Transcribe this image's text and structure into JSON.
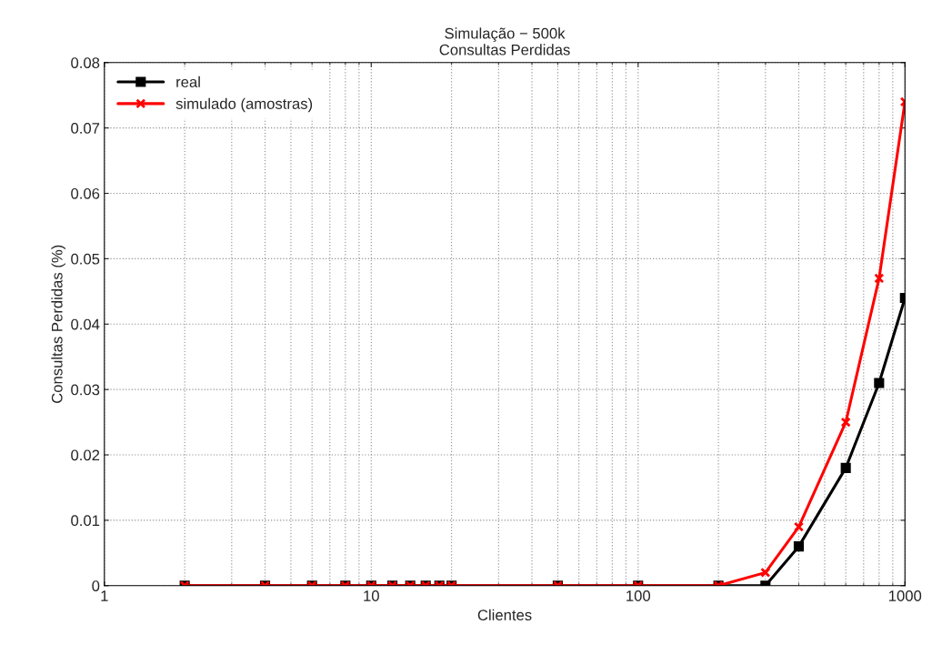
{
  "chart_data": {
    "type": "line",
    "title": "Simulação − 500k\nConsultas Perdidas",
    "xlabel": "Clientes",
    "ylabel": "Consultas Perdidas (%)",
    "x": [
      2,
      4,
      6,
      8,
      10,
      12,
      14,
      16,
      18,
      20,
      50,
      100,
      200,
      300,
      400,
      600,
      800,
      1000
    ],
    "series": [
      {
        "name": "real",
        "color": "#000000",
        "marker": "square",
        "values": [
          0,
          0,
          0,
          0,
          0,
          0,
          0,
          0,
          0,
          0,
          0,
          0,
          0,
          0,
          0.006,
          0.018,
          0.031,
          0.044
        ]
      },
      {
        "name": "simulado (amostras)",
        "color": "#ff0000",
        "marker": "cross",
        "values": [
          0,
          0,
          0,
          0,
          0,
          0,
          0,
          0,
          0,
          0,
          0,
          0,
          0,
          0.002,
          0.009,
          0.025,
          0.047,
          0.074
        ]
      }
    ],
    "log": "x",
    "xlim": [
      1,
      1000
    ],
    "xticks": [
      1,
      10,
      100,
      1000
    ],
    "ylim": [
      0,
      0.08
    ],
    "yticks": [
      0,
      0.01,
      0.02,
      0.03,
      0.04,
      0.05,
      0.06,
      0.07,
      0.08
    ],
    "grid": true,
    "legend": "top left",
    "line_style": "solid"
  }
}
